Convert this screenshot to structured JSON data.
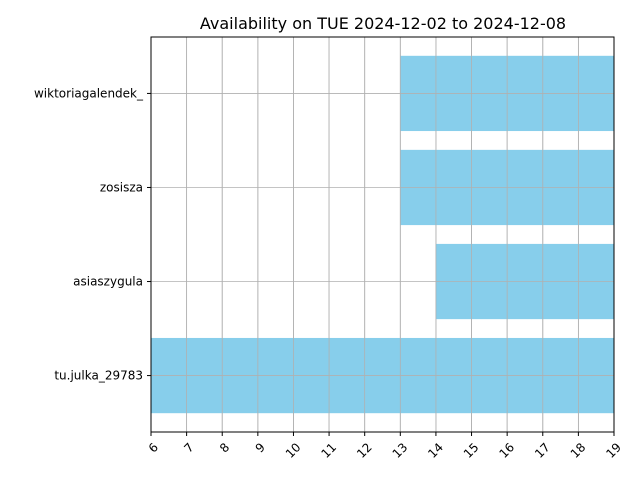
{
  "chart_data": {
    "type": "bar",
    "orientation": "horizontal",
    "title": "Availability on TUE 2024-12-02 to 2024-12-08",
    "xlabel": "",
    "ylabel": "",
    "xlim": [
      6,
      19
    ],
    "xticks": [
      "6",
      "7",
      "8",
      "9",
      "10",
      "11",
      "12",
      "13",
      "14",
      "15",
      "16",
      "17",
      "18",
      "19"
    ],
    "grid": true,
    "bar_color": "#87CEEB",
    "grid_color": "#b0b0b0",
    "bars": [
      {
        "label": "wiktoriagalendek_",
        "start": 13,
        "end": 19
      },
      {
        "label": "zosisza",
        "start": 13,
        "end": 19
      },
      {
        "label": "asiaszygula",
        "start": 14,
        "end": 19
      },
      {
        "label": "tu.julka_29783",
        "start": 6,
        "end": 19
      }
    ]
  }
}
